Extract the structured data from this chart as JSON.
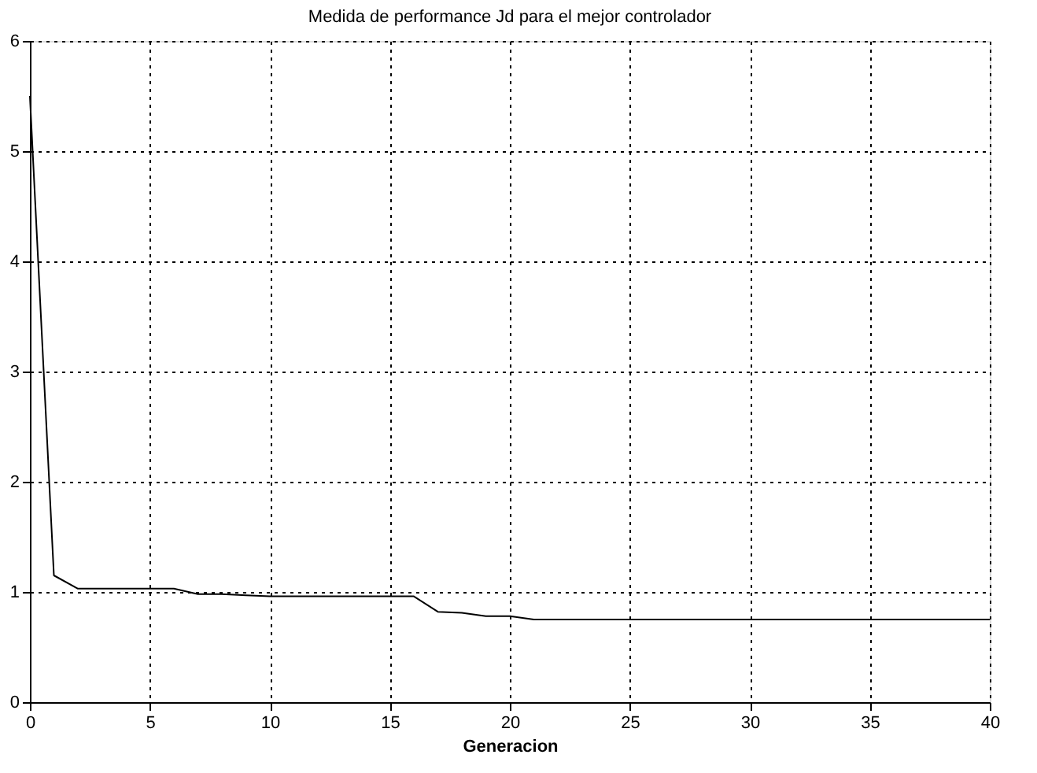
{
  "chart_data": {
    "type": "line",
    "title": "Medida de performance Jd para el mejor controlador",
    "xlabel": "Generacion",
    "x": [
      0,
      1,
      2,
      3,
      4,
      5,
      6,
      7,
      8,
      9,
      10,
      11,
      12,
      13,
      14,
      15,
      16,
      17,
      18,
      19,
      20,
      21,
      22,
      25,
      30,
      35,
      40
    ],
    "series": [
      {
        "color": "#000000",
        "values": [
          5.5,
          1.15,
          1.03,
          1.03,
          1.03,
          1.03,
          1.03,
          0.98,
          0.98,
          0.97,
          0.96,
          0.96,
          0.96,
          0.96,
          0.96,
          0.96,
          0.96,
          0.82,
          0.81,
          0.78,
          0.78,
          0.75,
          0.75,
          0.75,
          0.75,
          0.75,
          0.75
        ]
      }
    ],
    "xlim": [
      0,
      40
    ],
    "ylim": [
      0,
      6
    ],
    "xticks": [
      0,
      5,
      10,
      15,
      20,
      25,
      30,
      35,
      40
    ],
    "yticks": [
      0,
      1,
      2,
      3,
      4,
      5,
      6
    ],
    "grid": true,
    "legend": false,
    "marker": "none",
    "line_style": "solid"
  }
}
